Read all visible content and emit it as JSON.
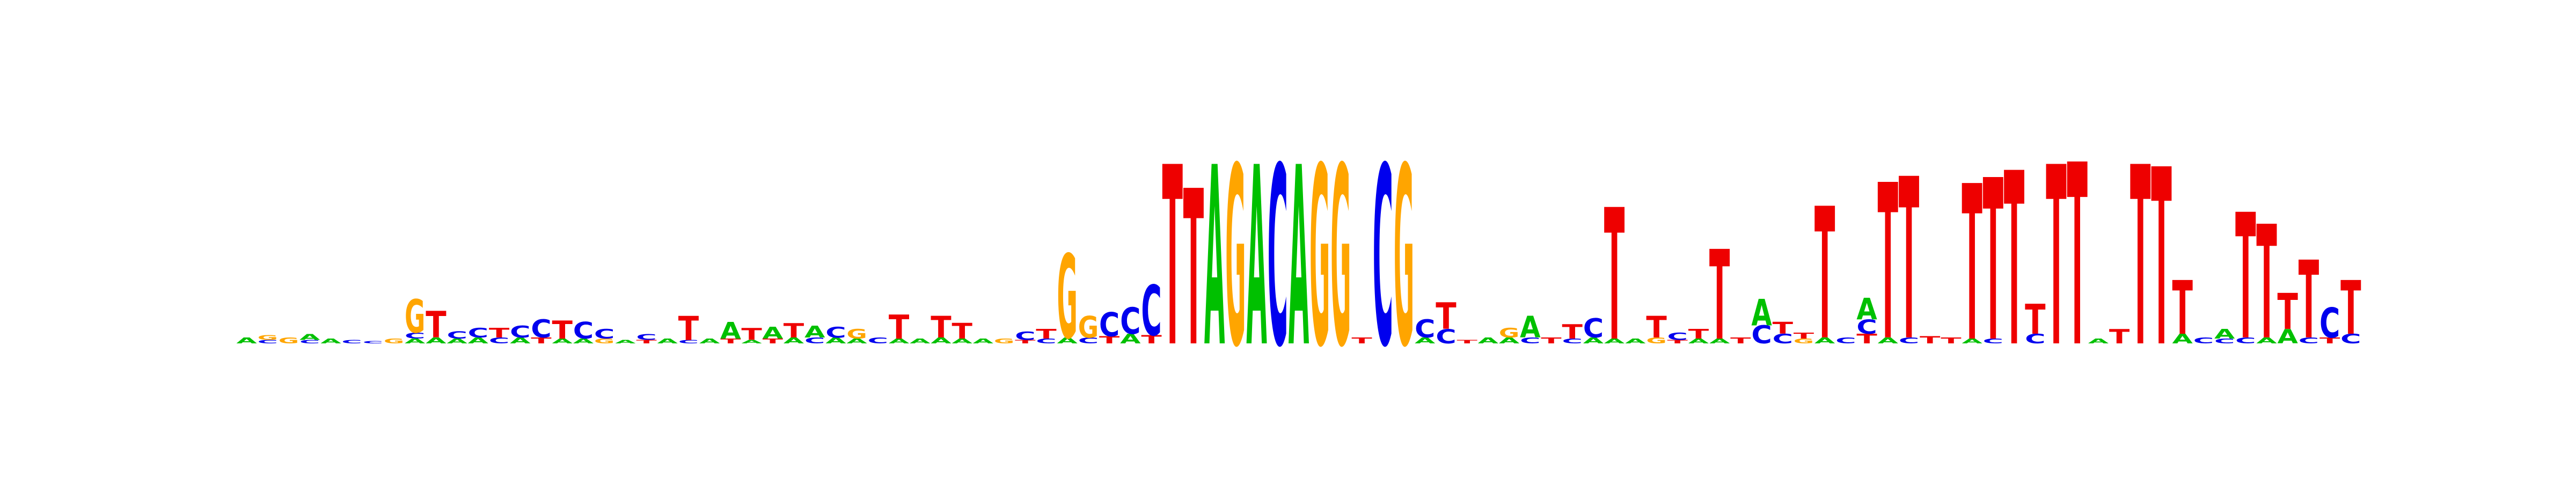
{
  "colors": {
    "A": "#00c000",
    "C": "#0000ee",
    "G": "#ffa500",
    "T": "#ee0000"
  },
  "chart_data": {
    "type": "sequence-logo",
    "alphabet": [
      "A",
      "C",
      "G",
      "T"
    ],
    "columns": [
      [
        [
          "A",
          0.05
        ]
      ],
      [
        [
          "G",
          0.04
        ],
        [
          "C",
          0.03
        ]
      ],
      [
        [
          "G",
          0.05
        ]
      ],
      [
        [
          "A",
          0.05
        ],
        [
          "C",
          0.03
        ]
      ],
      [
        [
          "A",
          0.04
        ]
      ],
      [
        [
          "C",
          0.03
        ]
      ],
      [
        [
          "C",
          0.02
        ]
      ],
      [
        [
          "G",
          0.04
        ]
      ],
      [
        [
          "G",
          0.28
        ],
        [
          "C",
          0.05
        ],
        [
          "A",
          0.04
        ]
      ],
      [
        [
          "T",
          0.22
        ],
        [
          "A",
          0.05
        ]
      ],
      [
        [
          "C",
          0.06
        ],
        [
          "A",
          0.04
        ]
      ],
      [
        [
          "C",
          0.08
        ],
        [
          "A",
          0.05
        ]
      ],
      [
        [
          "T",
          0.08
        ],
        [
          "C",
          0.05
        ]
      ],
      [
        [
          "C",
          0.1
        ],
        [
          "A",
          0.05
        ]
      ],
      [
        [
          "C",
          0.15
        ],
        [
          "T",
          0.05
        ]
      ],
      [
        [
          "T",
          0.15
        ],
        [
          "A",
          0.04
        ]
      ],
      [
        [
          "C",
          0.14
        ],
        [
          "A",
          0.04
        ]
      ],
      [
        [
          "C",
          0.08
        ],
        [
          "G",
          0.04
        ]
      ],
      [
        [
          "A",
          0.03
        ]
      ],
      [
        [
          "C",
          0.05
        ],
        [
          "T",
          0.03
        ]
      ],
      [
        [
          "A",
          0.04
        ]
      ],
      [
        [
          "T",
          0.2
        ],
        [
          "C",
          0.03
        ]
      ],
      [
        [
          "A",
          0.04
        ]
      ],
      [
        [
          "A",
          0.14
        ],
        [
          "T",
          0.04
        ]
      ],
      [
        [
          "T",
          0.1
        ],
        [
          "A",
          0.03
        ]
      ],
      [
        [
          "A",
          0.1
        ],
        [
          "T",
          0.04
        ]
      ],
      [
        [
          "T",
          0.12
        ],
        [
          "A",
          0.05
        ]
      ],
      [
        [
          "A",
          0.1
        ],
        [
          "C",
          0.05
        ]
      ],
      [
        [
          "C",
          0.09
        ],
        [
          "A",
          0.05
        ]
      ],
      [
        [
          "G",
          0.08
        ],
        [
          "A",
          0.04
        ]
      ],
      [
        [
          "C",
          0.05
        ]
      ],
      [
        [
          "T",
          0.2
        ],
        [
          "A",
          0.04
        ]
      ],
      [
        [
          "A",
          0.04
        ]
      ],
      [
        [
          "T",
          0.18
        ],
        [
          "A",
          0.05
        ]
      ],
      [
        [
          "T",
          0.13
        ],
        [
          "A",
          0.04
        ]
      ],
      [
        [
          "A",
          0.04
        ]
      ],
      [
        [
          "G",
          0.04
        ]
      ],
      [
        [
          "C",
          0.07
        ],
        [
          "T",
          0.03
        ]
      ],
      [
        [
          "T",
          0.08
        ],
        [
          "C",
          0.04
        ]
      ],
      [
        [
          "G",
          0.7
        ],
        [
          "A",
          0.05
        ]
      ],
      [
        [
          "G",
          0.18
        ],
        [
          "C",
          0.05
        ]
      ],
      [
        [
          "C",
          0.2
        ],
        [
          "T",
          0.06
        ]
      ],
      [
        [
          "C",
          0.22
        ],
        [
          "A",
          0.08
        ]
      ],
      [
        [
          "C",
          0.42
        ],
        [
          "T",
          0.07
        ]
      ],
      [
        [
          "T",
          1.5
        ]
      ],
      [
        [
          "T",
          1.3
        ]
      ],
      [
        [
          "A",
          1.5
        ]
      ],
      [
        [
          "G",
          1.5
        ]
      ],
      [
        [
          "A",
          1.5
        ]
      ],
      [
        [
          "C",
          1.5
        ]
      ],
      [
        [
          "A",
          1.5
        ]
      ],
      [
        [
          "G",
          1.5
        ]
      ],
      [
        [
          "G",
          1.5
        ]
      ],
      [
        [
          "T",
          0.05
        ]
      ],
      [
        [
          "C",
          1.5
        ]
      ],
      [
        [
          "G",
          1.5
        ]
      ],
      [
        [
          "C",
          0.15
        ],
        [
          "A",
          0.05
        ]
      ],
      [
        [
          "T",
          0.22
        ],
        [
          "C",
          0.12
        ]
      ],
      [
        [
          "T",
          0.03
        ]
      ],
      [
        [
          "A",
          0.05
        ]
      ],
      [
        [
          "G",
          0.08
        ],
        [
          "A",
          0.05
        ]
      ],
      [
        [
          "A",
          0.18
        ],
        [
          "C",
          0.05
        ]
      ],
      [
        [
          "T",
          0.05
        ]
      ],
      [
        [
          "T",
          0.12
        ],
        [
          "C",
          0.04
        ]
      ],
      [
        [
          "C",
          0.16
        ],
        [
          "A",
          0.05
        ]
      ],
      [
        [
          "T",
          1.1
        ],
        [
          "A",
          0.04
        ]
      ],
      [
        [
          "A",
          0.04
        ]
      ],
      [
        [
          "T",
          0.18
        ],
        [
          "G",
          0.05
        ]
      ],
      [
        [
          "C",
          0.06
        ],
        [
          "T",
          0.03
        ]
      ],
      [
        [
          "T",
          0.08
        ],
        [
          "A",
          0.04
        ]
      ],
      [
        [
          "T",
          0.75
        ],
        [
          "A",
          0.04
        ]
      ],
      [
        [
          "T",
          0.05
        ]
      ],
      [
        [
          "A",
          0.22
        ],
        [
          "C",
          0.15
        ]
      ],
      [
        [
          "T",
          0.1
        ],
        [
          "C",
          0.08
        ]
      ],
      [
        [
          "T",
          0.05
        ],
        [
          "G",
          0.04
        ]
      ],
      [
        [
          "T",
          1.1
        ],
        [
          "A",
          0.05
        ]
      ],
      [
        [
          "C",
          0.05
        ]
      ],
      [
        [
          "A",
          0.18
        ],
        [
          "C",
          0.12
        ],
        [
          "T",
          0.08
        ]
      ],
      [
        [
          "T",
          1.3
        ],
        [
          "A",
          0.05
        ]
      ],
      [
        [
          "T",
          1.35
        ],
        [
          "C",
          0.05
        ]
      ],
      [
        [
          "T",
          0.06
        ]
      ],
      [
        [
          "T",
          0.05
        ]
      ],
      [
        [
          "T",
          1.3
        ],
        [
          "A",
          0.04
        ]
      ],
      [
        [
          "T",
          1.35
        ],
        [
          "C",
          0.04
        ]
      ],
      [
        [
          "T",
          1.45
        ]
      ],
      [
        [
          "T",
          0.25
        ],
        [
          "C",
          0.08
        ]
      ],
      [
        [
          "T",
          1.5
        ]
      ],
      [
        [
          "T",
          1.52
        ]
      ],
      [
        [
          "A",
          0.04
        ]
      ],
      [
        [
          "T",
          0.12
        ]
      ],
      [
        [
          "T",
          1.5
        ]
      ],
      [
        [
          "T",
          1.48
        ]
      ],
      [
        [
          "T",
          0.45
        ],
        [
          "A",
          0.08
        ]
      ],
      [
        [
          "C",
          0.05
        ]
      ],
      [
        [
          "A",
          0.08
        ],
        [
          "C",
          0.04
        ]
      ],
      [
        [
          "T",
          1.05
        ],
        [
          "C",
          0.05
        ]
      ],
      [
        [
          "T",
          0.95
        ],
        [
          "A",
          0.05
        ]
      ],
      [
        [
          "T",
          0.3
        ],
        [
          "A",
          0.12
        ]
      ],
      [
        [
          "T",
          0.65
        ],
        [
          "C",
          0.05
        ]
      ],
      [
        [
          "C",
          0.25
        ],
        [
          "T",
          0.05
        ]
      ],
      [
        [
          "T",
          0.45
        ],
        [
          "C",
          0.08
        ]
      ]
    ]
  }
}
